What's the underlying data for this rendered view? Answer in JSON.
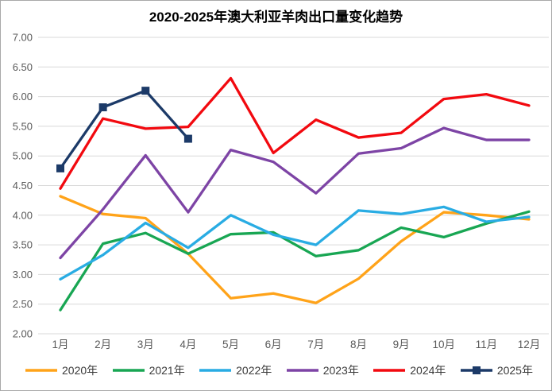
{
  "chart_data": {
    "type": "line",
    "title": "2020-2025年澳大利亚羊肉出口量变化趋势",
    "categories": [
      "1月",
      "2月",
      "3月",
      "4月",
      "5月",
      "6月",
      "7月",
      "8月",
      "9月",
      "10月",
      "11月",
      "12月"
    ],
    "ylim": [
      2.0,
      7.0
    ],
    "y_tick_step": 0.5,
    "y_tick_format_decimals": 2,
    "grid": "horizontal",
    "legend_position": "bottom",
    "series": [
      {
        "name": "2020年",
        "color": "#FFA319",
        "marker": "none",
        "values": [
          4.32,
          4.02,
          3.95,
          3.35,
          2.6,
          2.68,
          2.52,
          2.93,
          3.56,
          4.05,
          4.0,
          3.93
        ]
      },
      {
        "name": "2021年",
        "color": "#18A653",
        "marker": "none",
        "values": [
          2.4,
          3.52,
          3.7,
          3.35,
          3.68,
          3.71,
          3.31,
          3.41,
          3.79,
          3.63,
          3.86,
          4.06
        ]
      },
      {
        "name": "2022年",
        "color": "#29ACE3",
        "marker": "none",
        "values": [
          2.92,
          3.33,
          3.87,
          3.45,
          4.0,
          3.67,
          3.5,
          4.08,
          4.02,
          4.14,
          3.89,
          3.97
        ]
      },
      {
        "name": "2023年",
        "color": "#7D44A5",
        "marker": "none",
        "values": [
          3.28,
          4.1,
          5.01,
          4.05,
          5.1,
          4.9,
          4.37,
          5.04,
          5.13,
          5.47,
          5.27,
          5.27
        ]
      },
      {
        "name": "2024年",
        "color": "#F2090F",
        "marker": "none",
        "values": [
          4.45,
          5.63,
          5.46,
          5.49,
          6.31,
          5.05,
          5.61,
          5.31,
          5.39,
          5.96,
          6.04,
          5.85
        ]
      },
      {
        "name": "2025年",
        "color": "#1C3A68",
        "marker": "square",
        "values": [
          4.79,
          5.82,
          6.1,
          5.29
        ]
      }
    ],
    "styles": {
      "grid_color": "#D9D9D9",
      "tick_label_color": "#595959",
      "title_color": "#000000",
      "line_width": 3.3,
      "marker_size": 10
    }
  }
}
